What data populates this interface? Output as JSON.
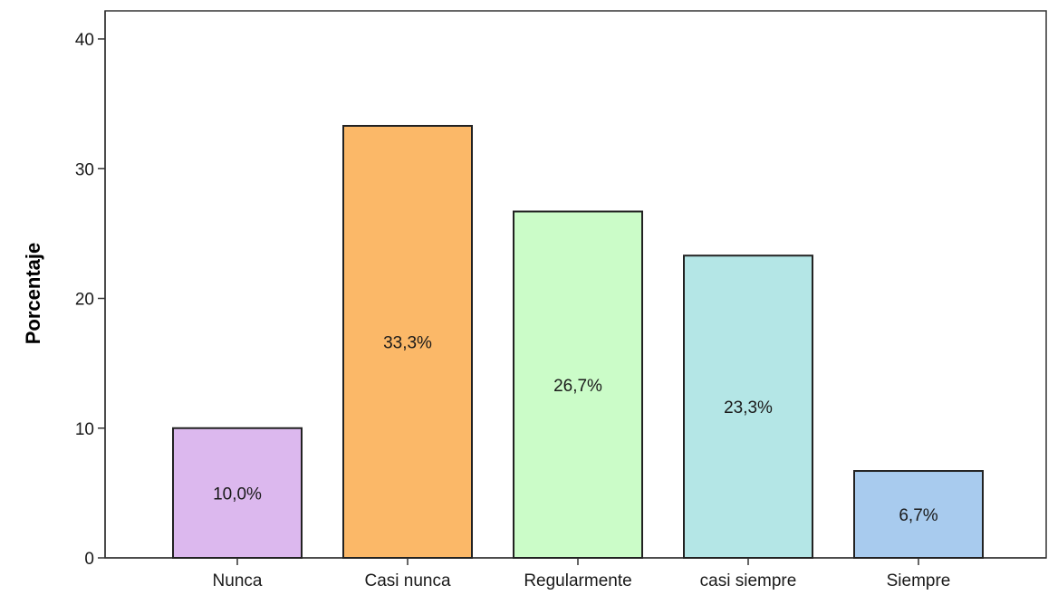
{
  "chart_data": {
    "type": "bar",
    "ylabel": "Porcentaje",
    "ylim": [
      0,
      40
    ],
    "yticks": [
      0,
      10,
      20,
      30,
      40
    ],
    "grid": false,
    "categories": [
      "Nunca",
      "Casi nunca",
      "Regularmente",
      "casi siempre",
      "Siempre"
    ],
    "values": [
      10.0,
      33.3,
      26.7,
      23.3,
      6.7
    ],
    "data_labels": [
      "10,0%",
      "33,3%",
      "26,7%",
      "23,3%",
      "6,7%"
    ],
    "colors": [
      "#dcb8ee",
      "#fbb868",
      "#cbfcc8",
      "#b4e6e6",
      "#a8cbee"
    ]
  }
}
